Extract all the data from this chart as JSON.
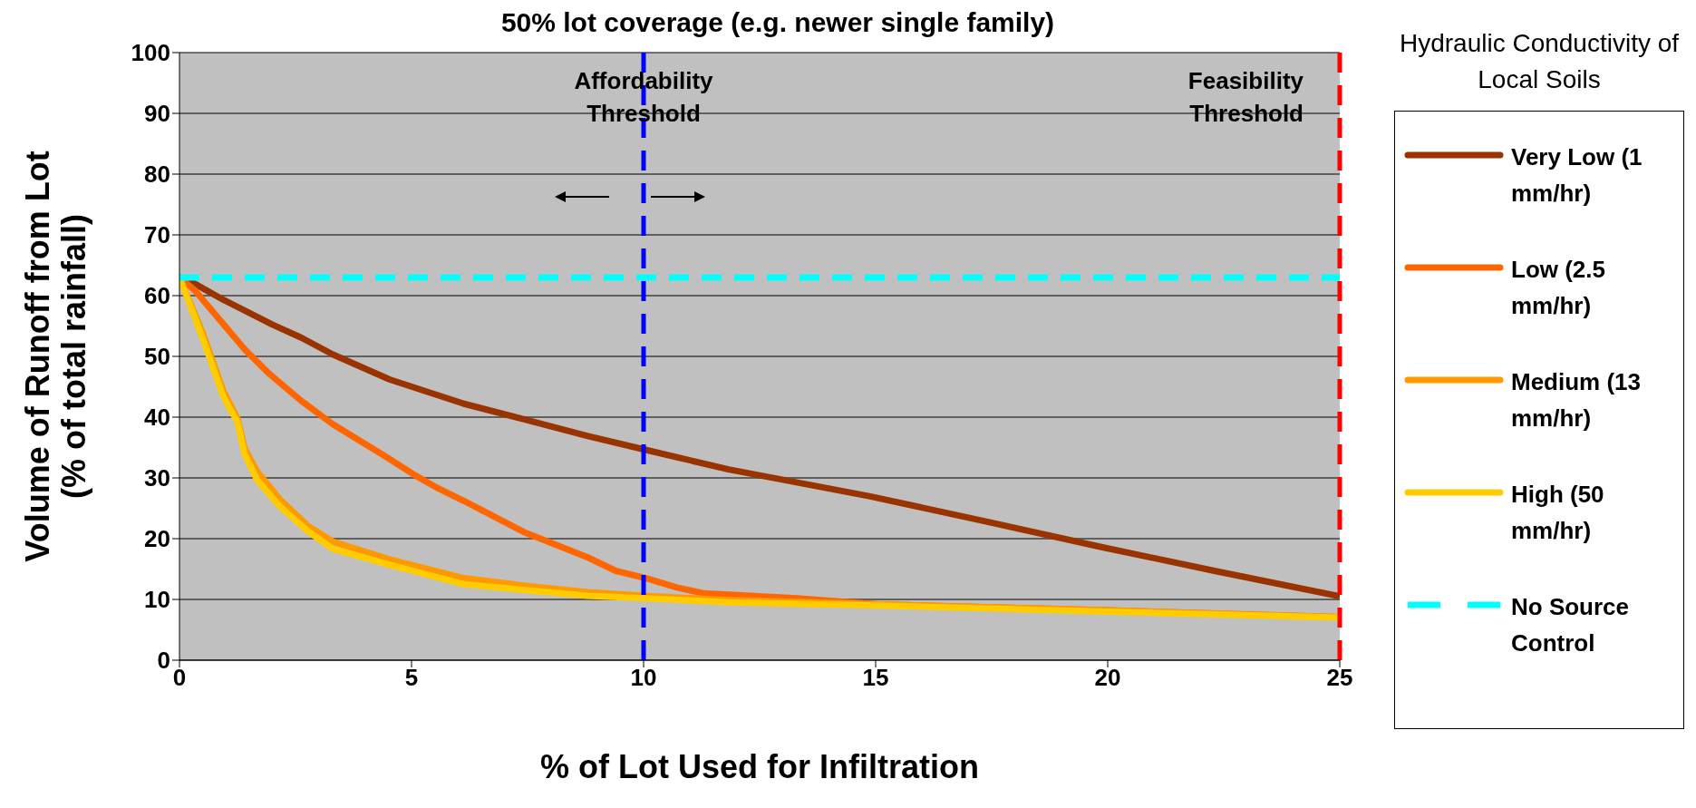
{
  "chart_data": {
    "type": "line",
    "title": "50% lot coverage (e.g. newer single family)",
    "xlabel": "% of Lot Used for Infiltration",
    "ylabel": "Volume of Runoff from Lot\n(% of total rainfall)",
    "legend_title": "Hydraulic Conductivity of Local Soils",
    "legend": "right",
    "grid": "y",
    "line_style": "solid",
    "marker": "none",
    "xlim": [
      0,
      25
    ],
    "ylim": [
      0,
      100
    ],
    "xticks": [
      0,
      5,
      10,
      15,
      20,
      25
    ],
    "yticks": [
      0,
      10,
      20,
      30,
      40,
      50,
      60,
      70,
      80,
      90,
      100
    ],
    "series": [
      {
        "name": "Very Low (1 mm/hr)",
        "color": "#993300",
        "x": [
          0,
          0.18,
          0.95,
          2.01,
          2.62,
          3.31,
          4.53,
          6.13,
          7.5,
          8.8,
          10,
          11.83,
          14.86,
          17.34,
          19.82,
          22.3,
          25
        ],
        "values": [
          63,
          62.6,
          59.3,
          55.2,
          53.1,
          50.3,
          46.2,
          42.2,
          39.5,
          36.9,
          34.7,
          31.4,
          27,
          22.9,
          18.7,
          14.7,
          10.5
        ]
      },
      {
        "name": "Low (2.5 mm/hr)",
        "color": "#ff6600",
        "x": [
          0,
          0.34,
          1.4,
          1.94,
          2.62,
          3.31,
          4.15,
          4.53,
          5.06,
          5.52,
          6.13,
          7.42,
          8.8,
          9.4,
          10.09,
          10.7,
          11.3,
          13.3,
          15,
          20,
          25
        ],
        "values": [
          63,
          60.8,
          51.2,
          47.1,
          42.7,
          38.8,
          34.9,
          33.1,
          30.5,
          28.5,
          26.2,
          21.1,
          16.9,
          14.7,
          13.4,
          12,
          11,
          10.2,
          9.2,
          8.2,
          7.1
        ]
      },
      {
        "name": "Medium (13 mm/hr)",
        "color": "#ff9900",
        "x": [
          0,
          0.49,
          0.95,
          1.25,
          1.4,
          1.67,
          2.16,
          2.77,
          3.31,
          4.53,
          6.13,
          7.5,
          8.8,
          10,
          11.83,
          15,
          20,
          25
        ],
        "values": [
          63,
          54.1,
          44.2,
          39.8,
          34.9,
          31.1,
          26.5,
          22.1,
          19.5,
          16.6,
          13.5,
          12.2,
          11.2,
          10.6,
          9.9,
          9.2,
          8.2,
          7.1
        ]
      },
      {
        "name": "High (50 mm/hr)",
        "color": "#ffcc00",
        "x": [
          0,
          0.49,
          0.95,
          1.25,
          1.4,
          1.67,
          2.16,
          2.77,
          3.31,
          4.53,
          6.13,
          7.5,
          8.8,
          10,
          11.83,
          15,
          20,
          25
        ],
        "values": [
          63,
          53.2,
          43.3,
          39.2,
          34,
          29.7,
          25.3,
          21.2,
          18.3,
          15.7,
          12.5,
          11.5,
          10.6,
          10.2,
          9.5,
          9,
          8,
          7
        ]
      },
      {
        "name": "No Source Control",
        "color": "#00ffff",
        "line_style": "dashed",
        "x": [
          0,
          25
        ],
        "values": [
          63,
          63
        ]
      }
    ],
    "ref_lines": [
      {
        "axis": "x",
        "value": 10,
        "label": "Affordability Threshold",
        "color": "#0000ff",
        "line_style": "dashed"
      },
      {
        "axis": "x",
        "value": 25,
        "label": "Feasibility Threshold",
        "color": "#ff0000",
        "line_style": "dashed"
      }
    ]
  }
}
